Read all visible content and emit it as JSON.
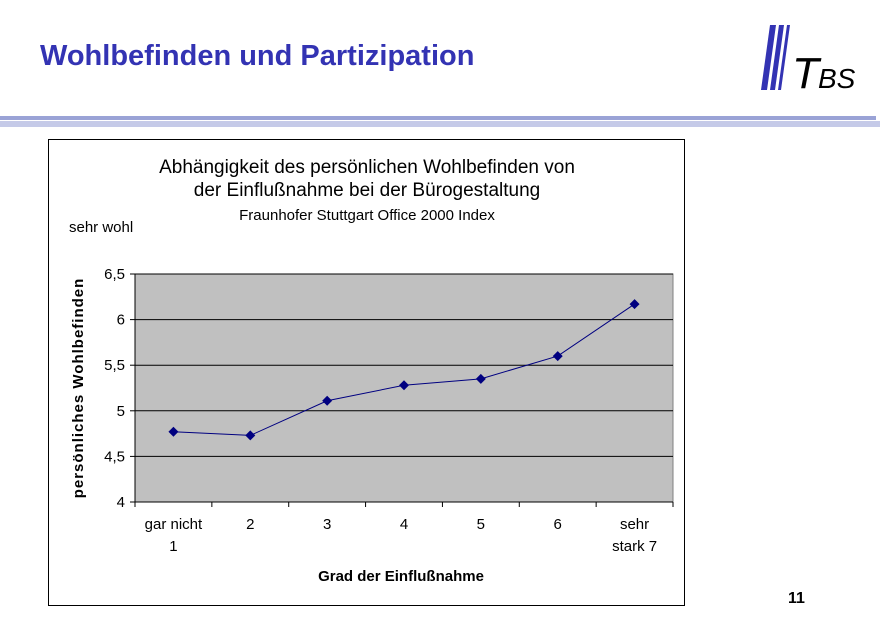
{
  "slide": {
    "title": "Wohlbefinden und Partizipation",
    "page_number": "11",
    "logo_text": "TBS"
  },
  "colors": {
    "title": "#3333b3",
    "plot_background": "#c0c0c0",
    "series": "#000080",
    "header_rule": "#9aa3d6"
  },
  "chart_data": {
    "type": "line",
    "title": "Abhängigkeit des persönlichen Wohlbefinden von der Einflußnahme bei der Bürogestaltung",
    "title_line1": "Abhängigkeit des persönlichen Wohlbefinden von",
    "title_line2": "der Einflußnahme bei der Bürogestaltung",
    "subtitle": "Fraunhofer Stuttgart Office 2000 Index",
    "annotation": "sehr wohl",
    "xlabel": "Grad der Einflußnahme",
    "ylabel": "persönliches Wohlbefinden",
    "categories": [
      [
        "gar nicht",
        "1"
      ],
      [
        "2"
      ],
      [
        "3"
      ],
      [
        "4"
      ],
      [
        "5"
      ],
      [
        "6"
      ],
      [
        "sehr",
        "stark 7"
      ]
    ],
    "series": [
      {
        "values": [
          4.77,
          4.73,
          5.11,
          5.28,
          5.35,
          5.6,
          6.17
        ]
      }
    ],
    "ylim": [
      4,
      6.5
    ],
    "yticks": [
      4,
      4.5,
      5,
      5.5,
      6,
      6.5
    ],
    "ytick_labels": [
      "4",
      "4,5",
      "5",
      "5,5",
      "6",
      "6,5"
    ],
    "grid": true,
    "legend": "none",
    "marker": "diamond"
  }
}
